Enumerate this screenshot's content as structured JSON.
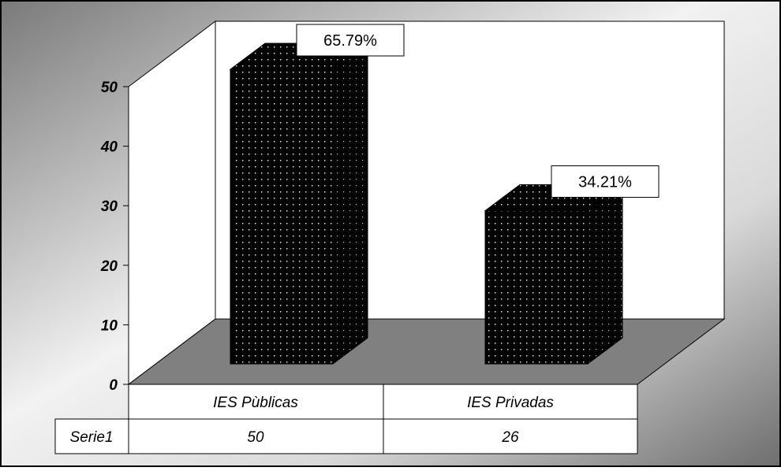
{
  "chart_data": {
    "type": "bar",
    "categories": [
      "IES Pùblicas",
      "IES Privadas"
    ],
    "series": [
      {
        "name": "Serie1",
        "values": [
          50,
          26
        ]
      }
    ],
    "data_labels": [
      "65.79%",
      "34.21%"
    ],
    "ylim": [
      0,
      50
    ],
    "yticks": [
      "0",
      "10",
      "20",
      "30",
      "40",
      "50"
    ],
    "data_table": {
      "row_label": "Serie1",
      "values": [
        "50",
        "26"
      ]
    },
    "title": "",
    "xlabel": "",
    "ylabel": "",
    "grid": false,
    "legend": "none",
    "three_d": true,
    "bar_pattern": "black-dotted",
    "colors": {
      "bar": "#000000",
      "bar_dots": "#ffffff",
      "floor": "#808080",
      "background_light": "#f2f2f2",
      "background_dark": "#7a7a7a"
    }
  }
}
